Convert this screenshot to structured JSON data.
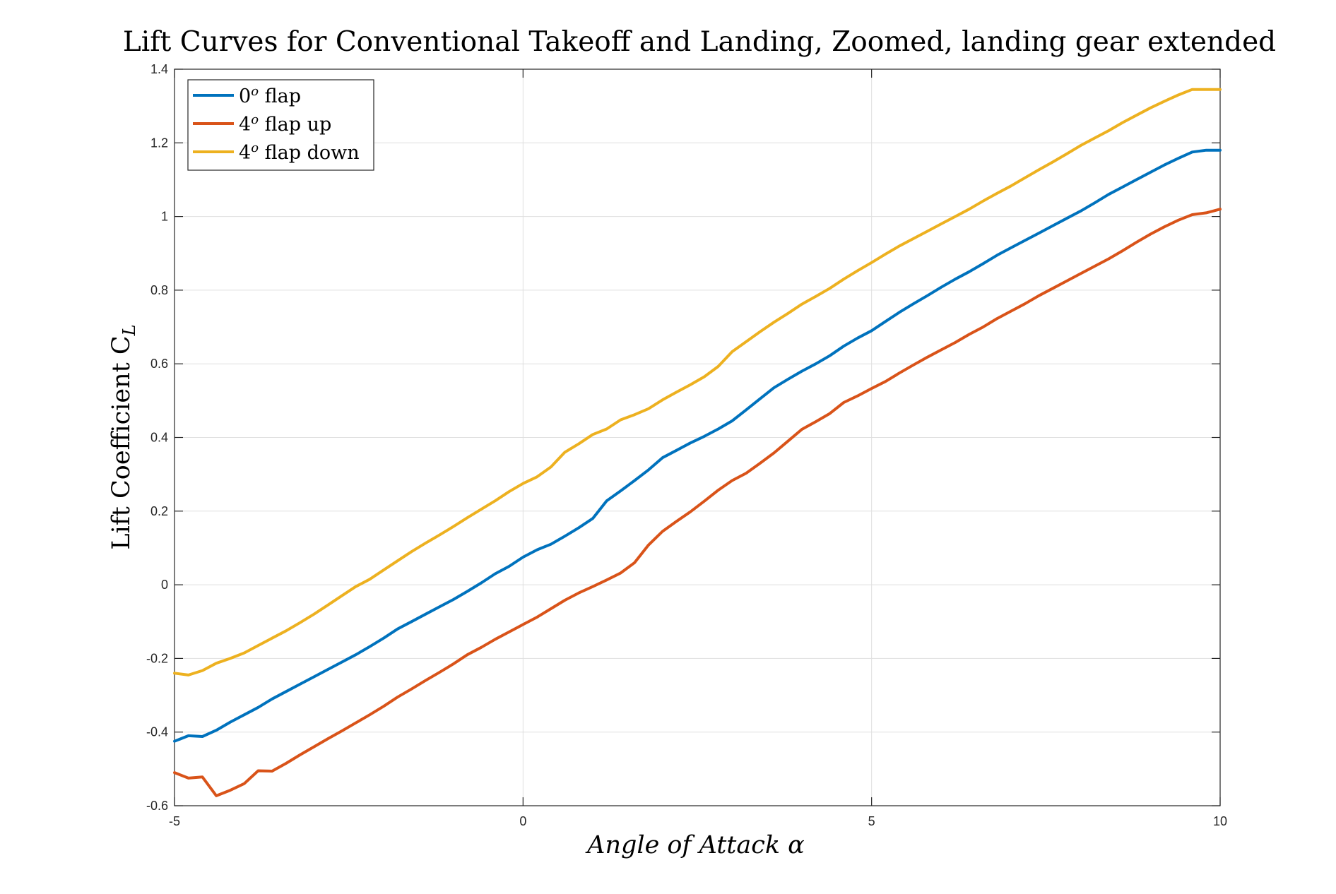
{
  "chart_data": {
    "type": "line",
    "title": "Lift Curves for Conventional Takeoff and Landing, Zoomed, landing gear extended",
    "ylabel": "Lift Coefficient C",
    "ylabel_subscript": "L",
    "xlabel": "Angle of Attack α",
    "xlim": [
      -5,
      10
    ],
    "ylim": [
      -0.6,
      1.4
    ],
    "xticks": [
      -5,
      0,
      5,
      10
    ],
    "xtick_labels": [
      "-5",
      "0",
      "5",
      "10"
    ],
    "yticks": [
      -0.6,
      -0.4,
      -0.2,
      0,
      0.2,
      0.4,
      0.6,
      0.8,
      1.0,
      1.2,
      1.4
    ],
    "ytick_labels": [
      "-0.6",
      "-0.4",
      "-0.2",
      "0",
      "0.2",
      "0.4",
      "0.6",
      "0.8",
      "1",
      "1.2",
      "1.4"
    ],
    "grid": true,
    "legend_position": "top-left",
    "series": [
      {
        "name": "0° flap",
        "legend_base": "0",
        "legend_sup": "o",
        "legend_suffix": " flap",
        "color": "#0072BD",
        "x": [
          -5,
          -4.8,
          -4.6,
          -4.4,
          -4.2,
          -4.0,
          -3.8,
          -3.6,
          -3.4,
          -3.2,
          -3.0,
          -2.8,
          -2.6,
          -2.4,
          -2.2,
          -2.0,
          -1.8,
          -1.6,
          -1.4,
          -1.2,
          -1.0,
          -0.8,
          -0.6,
          -0.4,
          -0.2,
          0.0,
          0.2,
          0.4,
          0.6,
          0.8,
          1.0,
          1.2,
          1.4,
          1.6,
          1.8,
          2.0,
          2.2,
          2.4,
          2.6,
          2.8,
          3.0,
          3.2,
          3.4,
          3.6,
          3.8,
          4.0,
          4.2,
          4.4,
          4.6,
          4.8,
          5.0,
          5.2,
          5.4,
          5.6,
          5.8,
          6.0,
          6.2,
          6.4,
          6.6,
          6.8,
          7.0,
          7.2,
          7.4,
          7.6,
          7.8,
          8.0,
          8.2,
          8.4,
          8.6,
          8.8,
          9.0,
          9.2,
          9.4,
          9.6,
          9.8,
          10.0
        ],
        "y": [
          -0.425,
          -0.41,
          -0.412,
          -0.395,
          -0.373,
          -0.353,
          -0.333,
          -0.31,
          -0.29,
          -0.27,
          -0.25,
          -0.23,
          -0.21,
          -0.19,
          -0.168,
          -0.145,
          -0.12,
          -0.1,
          -0.08,
          -0.06,
          -0.04,
          -0.018,
          0.005,
          0.03,
          0.05,
          0.075,
          0.095,
          0.11,
          0.132,
          0.155,
          0.18,
          0.228,
          0.255,
          0.283,
          0.312,
          0.345,
          0.365,
          0.385,
          0.403,
          0.423,
          0.445,
          0.475,
          0.505,
          0.535,
          0.558,
          0.58,
          0.6,
          0.622,
          0.648,
          0.67,
          0.69,
          0.715,
          0.74,
          0.763,
          0.785,
          0.808,
          0.83,
          0.85,
          0.872,
          0.895,
          0.915,
          0.935,
          0.955,
          0.975,
          0.995,
          1.015,
          1.037,
          1.06,
          1.08,
          1.1,
          1.12,
          1.14,
          1.158,
          1.175,
          1.18,
          1.18
        ]
      },
      {
        "name": "4° flap up",
        "legend_base": "4",
        "legend_sup": "o",
        "legend_suffix": " flap up",
        "color": "#D95319",
        "x": [
          -5,
          -4.8,
          -4.6,
          -4.4,
          -4.2,
          -4.0,
          -3.8,
          -3.6,
          -3.4,
          -3.2,
          -3.0,
          -2.8,
          -2.6,
          -2.4,
          -2.2,
          -2.0,
          -1.8,
          -1.6,
          -1.4,
          -1.2,
          -1.0,
          -0.8,
          -0.6,
          -0.4,
          -0.2,
          0.0,
          0.2,
          0.4,
          0.6,
          0.8,
          1.0,
          1.2,
          1.4,
          1.6,
          1.8,
          2.0,
          2.2,
          2.4,
          2.6,
          2.8,
          3.0,
          3.2,
          3.4,
          3.6,
          3.8,
          4.0,
          4.2,
          4.4,
          4.6,
          4.8,
          5.0,
          5.2,
          5.4,
          5.6,
          5.8,
          6.0,
          6.2,
          6.4,
          6.6,
          6.8,
          7.0,
          7.2,
          7.4,
          7.6,
          7.8,
          8.0,
          8.2,
          8.4,
          8.6,
          8.8,
          9.0,
          9.2,
          9.4,
          9.6,
          9.8,
          10.0
        ],
        "y": [
          -0.51,
          -0.525,
          -0.522,
          -0.573,
          -0.558,
          -0.54,
          -0.505,
          -0.506,
          -0.485,
          -0.462,
          -0.44,
          -0.418,
          -0.397,
          -0.375,
          -0.353,
          -0.33,
          -0.305,
          -0.283,
          -0.26,
          -0.238,
          -0.215,
          -0.19,
          -0.17,
          -0.148,
          -0.128,
          -0.108,
          -0.088,
          -0.065,
          -0.042,
          -0.022,
          -0.005,
          0.013,
          0.032,
          0.06,
          0.108,
          0.145,
          0.172,
          0.198,
          0.227,
          0.257,
          0.283,
          0.303,
          0.33,
          0.358,
          0.39,
          0.422,
          0.443,
          0.465,
          0.495,
          0.513,
          0.533,
          0.552,
          0.575,
          0.597,
          0.618,
          0.638,
          0.658,
          0.68,
          0.7,
          0.723,
          0.743,
          0.763,
          0.785,
          0.805,
          0.825,
          0.845,
          0.865,
          0.885,
          0.907,
          0.93,
          0.952,
          0.972,
          0.99,
          1.005,
          1.01,
          1.02
        ]
      },
      {
        "name": "4° flap down",
        "legend_base": "4",
        "legend_sup": "o",
        "legend_suffix": " flap down",
        "color": "#EDB120",
        "x": [
          -5,
          -4.8,
          -4.6,
          -4.4,
          -4.2,
          -4.0,
          -3.8,
          -3.6,
          -3.4,
          -3.2,
          -3.0,
          -2.8,
          -2.6,
          -2.4,
          -2.2,
          -2.0,
          -1.8,
          -1.6,
          -1.4,
          -1.2,
          -1.0,
          -0.8,
          -0.6,
          -0.4,
          -0.2,
          0.0,
          0.2,
          0.4,
          0.6,
          0.8,
          1.0,
          1.2,
          1.4,
          1.6,
          1.8,
          2.0,
          2.2,
          2.4,
          2.6,
          2.8,
          3.0,
          3.2,
          3.4,
          3.6,
          3.8,
          4.0,
          4.2,
          4.4,
          4.6,
          4.8,
          5.0,
          5.2,
          5.4,
          5.6,
          5.8,
          6.0,
          6.2,
          6.4,
          6.6,
          6.8,
          7.0,
          7.2,
          7.4,
          7.6,
          7.8,
          8.0,
          8.2,
          8.4,
          8.6,
          8.8,
          9.0,
          9.2,
          9.4,
          9.6,
          9.8,
          10.0
        ],
        "y": [
          -0.24,
          -0.245,
          -0.233,
          -0.213,
          -0.2,
          -0.185,
          -0.165,
          -0.145,
          -0.125,
          -0.103,
          -0.08,
          -0.055,
          -0.03,
          -0.005,
          0.015,
          0.04,
          0.065,
          0.09,
          0.113,
          0.135,
          0.158,
          0.182,
          0.205,
          0.228,
          0.253,
          0.275,
          0.293,
          0.32,
          0.36,
          0.383,
          0.408,
          0.423,
          0.448,
          0.462,
          0.478,
          0.502,
          0.523,
          0.543,
          0.565,
          0.593,
          0.633,
          0.66,
          0.687,
          0.713,
          0.737,
          0.762,
          0.783,
          0.805,
          0.83,
          0.853,
          0.875,
          0.898,
          0.92,
          0.94,
          0.96,
          0.98,
          1.0,
          1.02,
          1.042,
          1.063,
          1.083,
          1.105,
          1.127,
          1.148,
          1.17,
          1.193,
          1.213,
          1.233,
          1.255,
          1.275,
          1.295,
          1.313,
          1.33,
          1.345,
          1.345,
          1.345
        ]
      }
    ]
  }
}
